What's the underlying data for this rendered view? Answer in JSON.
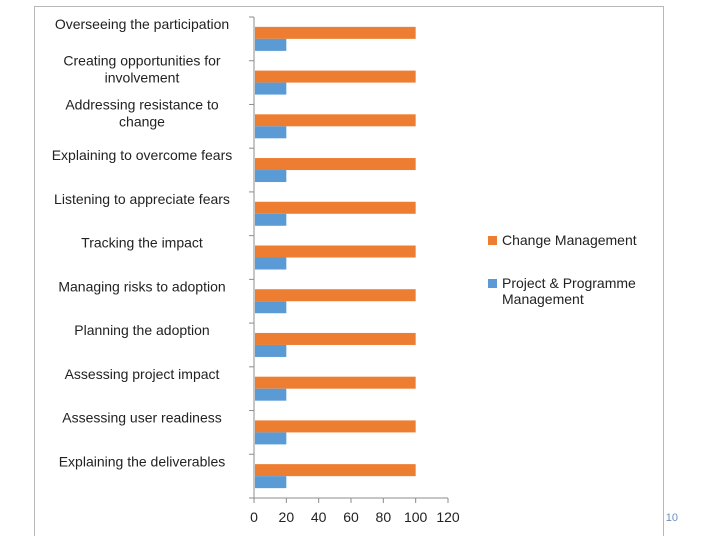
{
  "chart_data": {
    "type": "bar",
    "orientation": "horizontal",
    "title": "",
    "xlabel": "",
    "ylabel": "",
    "xlim": [
      0,
      120
    ],
    "x_ticks": [
      0,
      20,
      40,
      60,
      80,
      100,
      120
    ],
    "grid": false,
    "legend_position": "right",
    "categories": [
      "Overseeing the participation",
      "Creating opportunities for involvement",
      "Addressing resistance to change",
      "Explaining to overcome fears",
      "Listening to appreciate fears",
      "Tracking the impact",
      "Managing risks to adoption",
      "Planning the adoption",
      "Assessing project impact",
      "Assessing user readiness",
      "Explaining the deliverables"
    ],
    "series": [
      {
        "name": "Change Management",
        "color": "#ed7d31",
        "values": [
          100,
          100,
          100,
          100,
          100,
          100,
          100,
          100,
          100,
          100,
          100
        ]
      },
      {
        "name": "Project & Programme Management",
        "color": "#5b9bd5",
        "values": [
          20,
          20,
          20,
          20,
          20,
          20,
          20,
          20,
          20,
          20,
          20
        ]
      }
    ]
  },
  "slide": {
    "page_number": "10"
  }
}
